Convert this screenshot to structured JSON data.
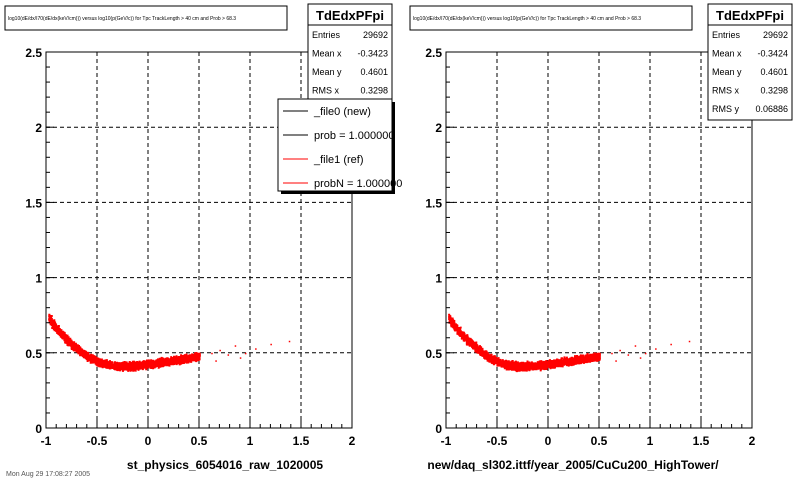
{
  "footer": "Mon Aug 29 17:08:27 2005",
  "chart_data": [
    {
      "type": "scatter",
      "title": "log10(dE/dx/I70(dE/dx(keV/cm))) versus log10(p(GeV/c)) for Tpc TrackLength > 40 cm and Prob > 68.3",
      "caption": "st_physics_6054016_raw_1020005",
      "xlim": [
        -1,
        2
      ],
      "ylim": [
        0,
        2.5
      ],
      "xticks": [
        "-1",
        "-0.5",
        "0",
        "0.5",
        "1",
        "1.5",
        "2"
      ],
      "yticks": [
        "0",
        "0.5",
        "1",
        "1.5",
        "2",
        "2.5"
      ],
      "grid": true,
      "point_color": "#ff0000",
      "band": {
        "x": [
          -0.98,
          -0.9,
          -0.8,
          -0.7,
          -0.6,
          -0.5,
          -0.4,
          -0.3,
          -0.2,
          -0.1,
          0.0,
          0.1,
          0.2,
          0.3,
          0.4,
          0.5
        ],
        "y": [
          0.74,
          0.66,
          0.59,
          0.53,
          0.48,
          0.445,
          0.425,
          0.415,
          0.415,
          0.42,
          0.43,
          0.44,
          0.45,
          0.46,
          0.47,
          0.48
        ]
      },
      "stats": {
        "name": "TdEdxPFpi",
        "rows": [
          {
            "label": "Entries",
            "value": "29692"
          },
          {
            "label": "Mean x",
            "value": "-0.3423"
          },
          {
            "label": "Mean y",
            "value": "0.4601"
          },
          {
            "label": "RMS x",
            "value": "0.3298"
          }
        ]
      },
      "legend": {
        "placement": "top-right",
        "entries": [
          {
            "label": "_file0 (new)",
            "color": "#000000"
          },
          {
            "label": "prob = 1.000000",
            "color": "#000000"
          },
          {
            "label": "_file1 (ref)",
            "color": "#ff0000"
          },
          {
            "label": "probN = 1.000000",
            "color": "#ff0000"
          }
        ]
      }
    },
    {
      "type": "scatter",
      "title": "log10(dE/dx/I70(dE/dx(keV/cm))) versus log10(p(GeV/c)) for Tpc TrackLength > 40 cm and Prob > 68.3",
      "caption": "new/daq_sl302.ittf/year_2005/CuCu200_HighTower/",
      "xlim": [
        -1,
        2
      ],
      "ylim": [
        0,
        2.5
      ],
      "xticks": [
        "-1",
        "-0.5",
        "0",
        "0.5",
        "1",
        "1.5",
        "2"
      ],
      "yticks": [
        "0",
        "0.5",
        "1",
        "1.5",
        "2",
        "2.5"
      ],
      "grid": true,
      "point_color": "#ff0000",
      "band": {
        "x": [
          -0.98,
          -0.9,
          -0.8,
          -0.7,
          -0.6,
          -0.5,
          -0.4,
          -0.3,
          -0.2,
          -0.1,
          0.0,
          0.1,
          0.2,
          0.3,
          0.4,
          0.5
        ],
        "y": [
          0.74,
          0.66,
          0.59,
          0.53,
          0.48,
          0.445,
          0.425,
          0.415,
          0.415,
          0.42,
          0.43,
          0.44,
          0.45,
          0.46,
          0.47,
          0.48
        ]
      },
      "stats": {
        "name": "TdEdxPFpi",
        "rows": [
          {
            "label": "Entries",
            "value": "29692"
          },
          {
            "label": "Mean x",
            "value": "-0.3424"
          },
          {
            "label": "Mean y",
            "value": "0.4601"
          },
          {
            "label": "RMS x",
            "value": "0.3298"
          },
          {
            "label": "RMS y",
            "value": "0.06886"
          }
        ]
      }
    }
  ]
}
